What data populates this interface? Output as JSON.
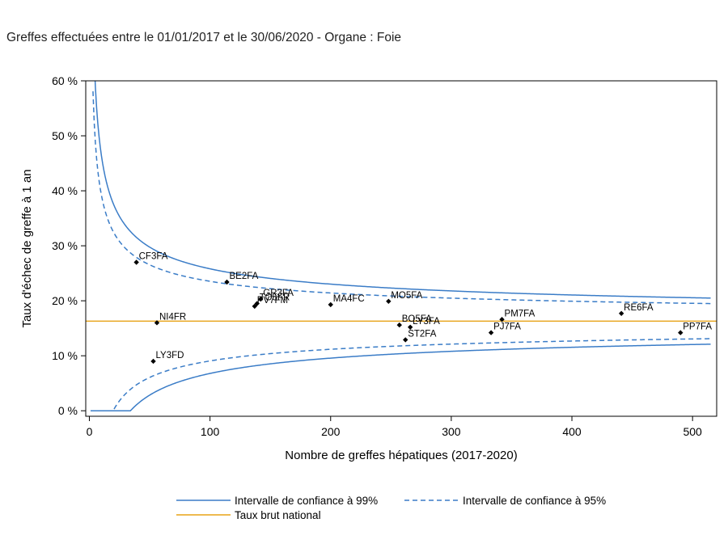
{
  "title": "Greffes effectuées entre le 01/01/2017 et le 30/06/2020 - Organe : Foie",
  "chart_data": {
    "type": "scatter",
    "xlabel": "Nombre de greffes hépatiques (2017-2020)",
    "ylabel": "Taux d'échec de greffe à 1 an",
    "xlim": [
      -3,
      520
    ],
    "ylim": [
      -0.01,
      0.6
    ],
    "x_ticks": [
      0,
      100,
      200,
      300,
      400,
      500
    ],
    "x_tick_labels": [
      "0",
      "100",
      "200",
      "300",
      "400",
      "500"
    ],
    "y_ticks": [
      0,
      0.1,
      0.2,
      0.3,
      0.4,
      0.5,
      0.6
    ],
    "y_tick_labels": [
      "0 %",
      "10 %",
      "20 %",
      "30 %",
      "40 %",
      "50 %",
      "60 %"
    ],
    "grid": false,
    "national_rate": 0.163,
    "points": [
      {
        "label": "CF3FA",
        "x": 39,
        "y": 0.27
      },
      {
        "label": "BE2FA",
        "x": 114,
        "y": 0.234
      },
      {
        "label": "GR3FA",
        "x": 142,
        "y": 0.203
      },
      {
        "label": "TO5FR",
        "x": 139,
        "y": 0.195
      },
      {
        "label": "PV7FM",
        "x": 137,
        "y": 0.19
      },
      {
        "label": "MA4FC",
        "x": 200,
        "y": 0.193
      },
      {
        "label": "MO5FA",
        "x": 248,
        "y": 0.199
      },
      {
        "label": "NI4FR",
        "x": 56,
        "y": 0.16
      },
      {
        "label": "BO5FA",
        "x": 257,
        "y": 0.156
      },
      {
        "label": "LY3FA",
        "x": 266,
        "y": 0.152
      },
      {
        "label": "ST2FA",
        "x": 262,
        "y": 0.129
      },
      {
        "label": "PM7FA",
        "x": 342,
        "y": 0.166
      },
      {
        "label": "PJ7FA",
        "x": 333,
        "y": 0.142
      },
      {
        "label": "RE6FA",
        "x": 441,
        "y": 0.177
      },
      {
        "label": "PP7FA",
        "x": 490,
        "y": 0.142
      },
      {
        "label": "LY3FD",
        "x": 53,
        "y": 0.09
      }
    ],
    "series": [
      {
        "name": "Intervalle de confiance à 99%",
        "color": "#3a7cc7",
        "style": "solid"
      },
      {
        "name": "Intervalle de confiance à 95%",
        "color": "#3a7cc7",
        "style": "dashed"
      },
      {
        "name": "Taux brut national",
        "color": "#e8a317",
        "style": "solid"
      }
    ],
    "legend_position": "bottom"
  }
}
